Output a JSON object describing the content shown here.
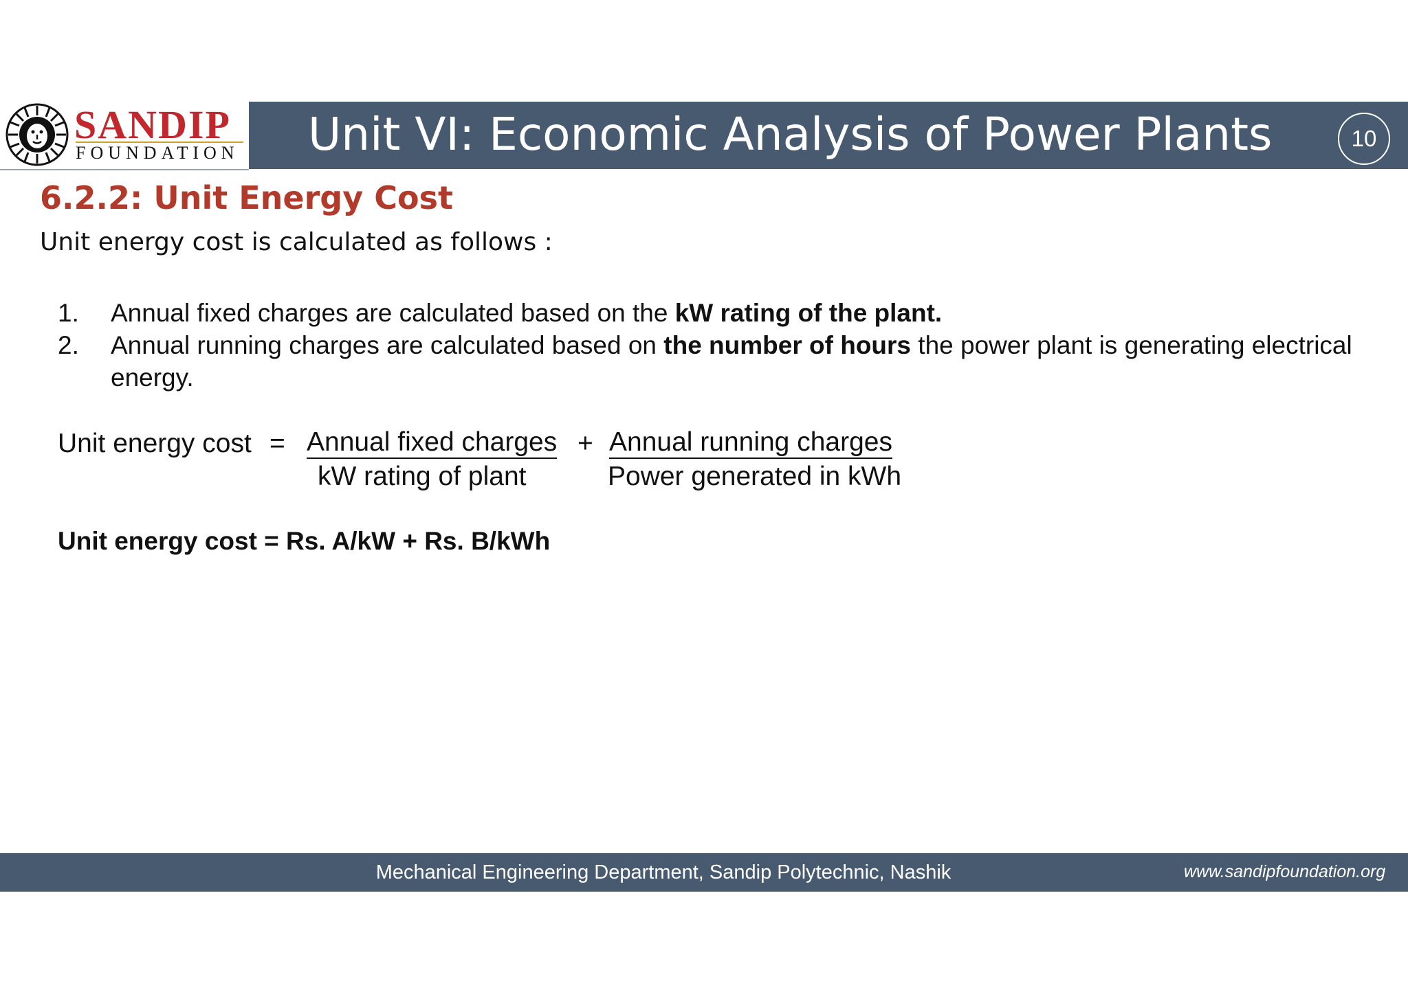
{
  "header": {
    "logo_word": "SANDIP",
    "logo_sub": "FOUNDATION",
    "title": "Unit VI: Economic Analysis of Power Plants",
    "page_number": "10"
  },
  "section": {
    "title": "6.2.2: Unit Energy Cost",
    "intro": "Unit energy cost is calculated as follows :"
  },
  "list": [
    {
      "num": "1.",
      "pre": "Annual fixed charges are calculated based on the ",
      "bold": "kW rating of the plant.",
      "post": ""
    },
    {
      "num": "2.",
      "pre": "Annual running charges are calculated based on ",
      "bold": "the number of hours",
      "post": " the power plant is generating electrical energy."
    }
  ],
  "formula": {
    "label": "Unit energy cost",
    "equals": "=",
    "term1_numerator": "Annual fixed charges",
    "term1_denominator": "kW rating of plant",
    "plus": "+",
    "term2_numerator": "Annual running charges",
    "term2_denominator": "Power generated in kWh"
  },
  "result": "Unit energy cost = Rs. A/kW + Rs. B/kWh",
  "footer": {
    "text": "Mechanical Engineering Department, Sandip Polytechnic, Nashik",
    "url": "www.sandipfoundation.org"
  },
  "colors": {
    "bar": "#485a70",
    "accent_red": "#b23a2a",
    "logo_red": "#c1272d"
  }
}
